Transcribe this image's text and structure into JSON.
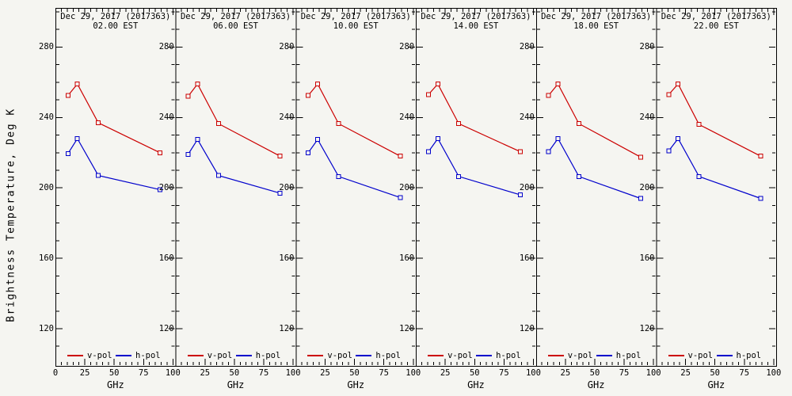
{
  "figure": {
    "background": "#f5f5f1",
    "frame_color": "#000000",
    "text_color": "#000000"
  },
  "chart_data": {
    "type": "line",
    "layout": "6 side-by-side panels sharing a common y scale, frequency spectra of brightness temperature at six times of day",
    "ylabel": "Brightness Temperature, Deg K",
    "xlabel": "GHz",
    "xlim": [
      0,
      102
    ],
    "ylim": [
      100,
      300
    ],
    "xticks": [
      0,
      25,
      50,
      75,
      100
    ],
    "yticks": [
      280,
      240,
      200,
      160,
      120
    ],
    "x_minor_step": 5,
    "y_minor_step": 10,
    "grid": "off",
    "x_frequencies_ghz": [
      10.65,
      18.7,
      36.5,
      89.0
    ],
    "legend": {
      "position": "bottom-inside-each-panel",
      "items": [
        {
          "label": "v-pol",
          "color": "#cc0000"
        },
        {
          "label": "h-pol",
          "color": "#0000cc"
        }
      ]
    },
    "panels": [
      {
        "title_line1": "Dec 29, 2017 (2017363)",
        "title_line2": "02.00 EST",
        "series": [
          {
            "name": "v-pol",
            "color": "#cc0000",
            "values": [
              252.5,
              259,
              237,
              220
            ]
          },
          {
            "name": "h-pol",
            "color": "#0000cc",
            "values": [
              219.5,
              228,
              207,
              199
            ]
          }
        ]
      },
      {
        "title_line1": "Dec 29, 2017 (2017363)",
        "title_line2": "06.00 EST",
        "series": [
          {
            "name": "v-pol",
            "color": "#cc0000",
            "values": [
              252,
              259,
              236.5,
              218
            ]
          },
          {
            "name": "h-pol",
            "color": "#0000cc",
            "values": [
              219,
              227.5,
              207,
              197
            ]
          }
        ]
      },
      {
        "title_line1": "Dec 29, 2017 (2017363)",
        "title_line2": "10.00 EST",
        "series": [
          {
            "name": "v-pol",
            "color": "#cc0000",
            "values": [
              252.5,
              259,
              236.5,
              218
            ]
          },
          {
            "name": "h-pol",
            "color": "#0000cc",
            "values": [
              220,
              227.5,
              206.5,
              194.5
            ]
          }
        ]
      },
      {
        "title_line1": "Dec 29, 2017 (2017363)",
        "title_line2": "14.00 EST",
        "series": [
          {
            "name": "v-pol",
            "color": "#cc0000",
            "values": [
              253,
              259,
              236.5,
              220.5
            ]
          },
          {
            "name": "h-pol",
            "color": "#0000cc",
            "values": [
              220.5,
              228,
              206.5,
              196
            ]
          }
        ]
      },
      {
        "title_line1": "Dec 29, 2017 (2017363)",
        "title_line2": "18.00 EST",
        "series": [
          {
            "name": "v-pol",
            "color": "#cc0000",
            "values": [
              252.5,
              259,
              236.5,
              217.5
            ]
          },
          {
            "name": "h-pol",
            "color": "#0000cc",
            "values": [
              220.5,
              228,
              206.5,
              194
            ]
          }
        ]
      },
      {
        "title_line1": "Dec 29, 2017 (2017363)",
        "title_line2": "22.00 EST",
        "series": [
          {
            "name": "v-pol",
            "color": "#cc0000",
            "values": [
              253,
              259,
              236,
              218
            ]
          },
          {
            "name": "h-pol",
            "color": "#0000cc",
            "values": [
              221,
              228,
              206.5,
              194
            ]
          }
        ]
      }
    ]
  }
}
